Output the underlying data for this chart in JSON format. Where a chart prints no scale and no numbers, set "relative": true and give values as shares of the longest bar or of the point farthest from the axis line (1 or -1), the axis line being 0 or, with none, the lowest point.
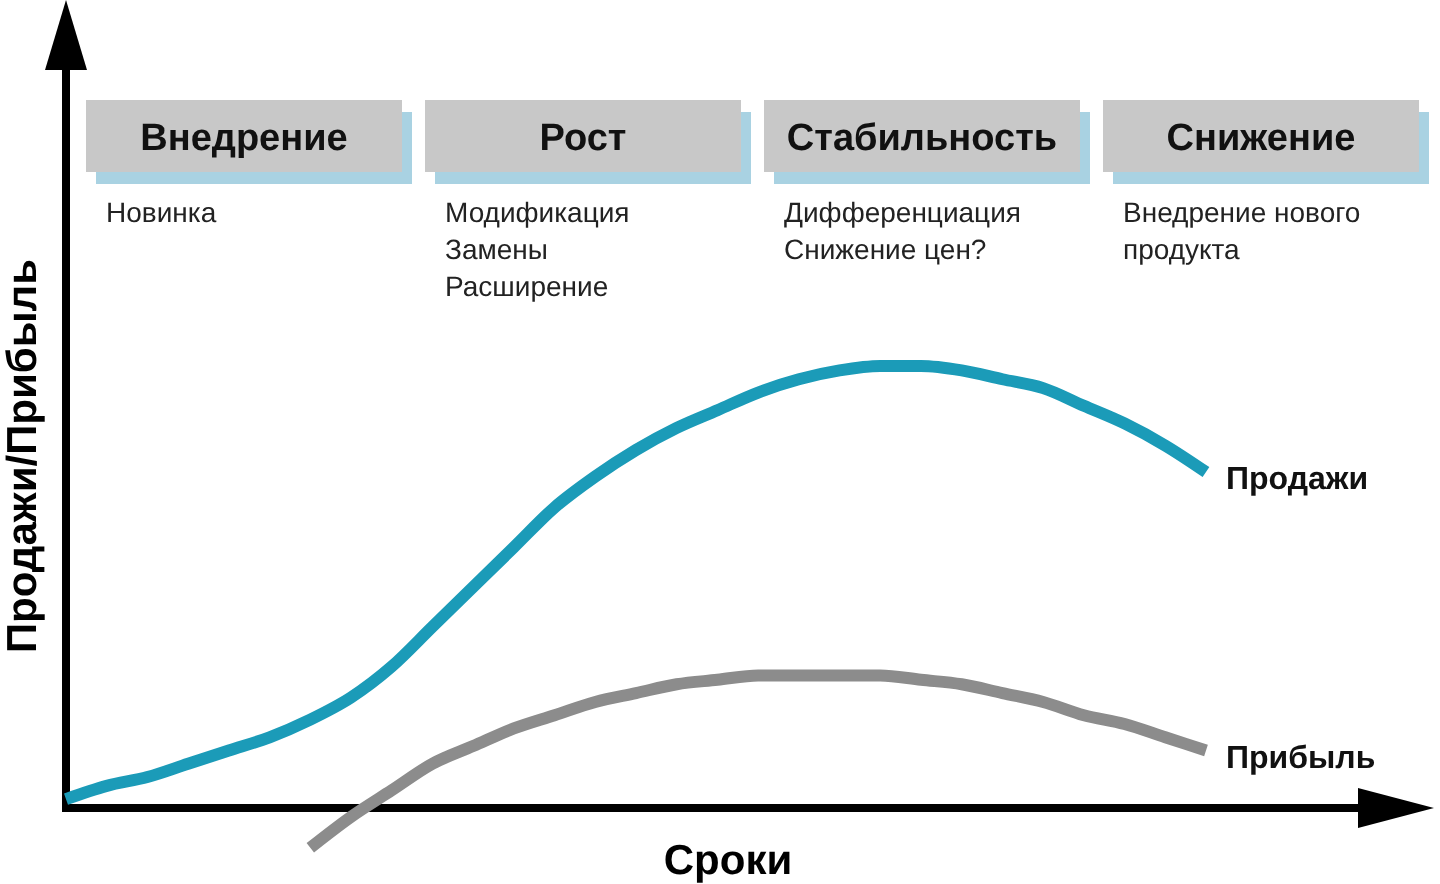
{
  "chart_data": {
    "type": "line",
    "relative": true,
    "xlabel": "Сроки",
    "ylabel": "Продажи/Прибыль",
    "categories": [
      null,
      null,
      null,
      null,
      null,
      null,
      null,
      null,
      null,
      null,
      null,
      null,
      null,
      null,
      null,
      null,
      null,
      null,
      null,
      null,
      null,
      null,
      null,
      null,
      null,
      null,
      null,
      null,
      null
    ],
    "series": [
      {
        "name": "Продажи",
        "color": "#1b9bb8",
        "values": [
          0.02,
          0.05,
          0.07,
          0.1,
          0.13,
          0.16,
          0.2,
          0.25,
          0.32,
          0.41,
          0.5,
          0.59,
          0.68,
          0.75,
          0.81,
          0.86,
          0.9,
          0.94,
          0.97,
          0.99,
          1,
          1,
          0.99,
          0.97,
          0.95,
          0.91,
          0.87,
          0.82,
          0.76
        ]
      },
      {
        "name": "Прибыль",
        "color": "#8c8c8c",
        "values": [
          null,
          null,
          null,
          null,
          null,
          null,
          -0.09,
          -0.02,
          0.04,
          0.1,
          0.14,
          0.18,
          0.21,
          0.24,
          0.26,
          0.28,
          0.29,
          0.3,
          0.3,
          0.3,
          0.3,
          0.29,
          0.28,
          0.26,
          0.24,
          0.21,
          0.19,
          0.16,
          0.13
        ]
      }
    ],
    "annotations": [
      "Внедрение",
      "Новинка",
      "Рост",
      "Модификация\nЗамены\nРасширение",
      "Стабильность",
      "Дифференциация\nСнижение цен?",
      "Снижение",
      "Внедрение нового\nпродукта"
    ]
  }
}
